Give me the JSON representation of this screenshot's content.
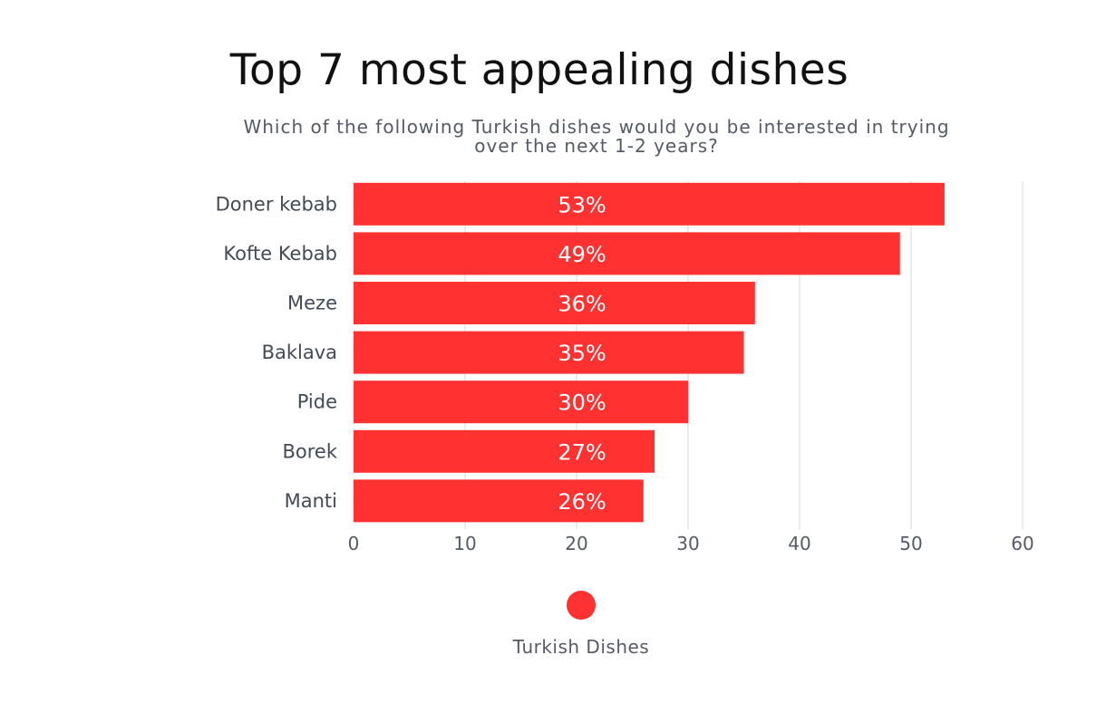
{
  "chart_data": {
    "type": "bar",
    "orientation": "horizontal",
    "title": "Top 7 most appealing  dishes",
    "subtitle": "Which of the following Turkish dishes would you be interested in trying over the next 1-2 years?",
    "categories": [
      "Doner kebab",
      "Kofte Kebab",
      "Meze",
      "Baklava",
      "Pide",
      "Borek",
      "Manti"
    ],
    "series": [
      {
        "name": "Turkish Dishes",
        "values": [
          53,
          49,
          36,
          35,
          30,
          27,
          26
        ],
        "labels": [
          "53%",
          "49%",
          "36%",
          "35%",
          "30%",
          "27%",
          "26%"
        ],
        "color": "#ff3131"
      }
    ],
    "xlim": [
      0,
      60
    ],
    "xticks": [
      0,
      10,
      20,
      30,
      40,
      50,
      60
    ],
    "grid": "vertical",
    "legend_position": "bottom"
  }
}
